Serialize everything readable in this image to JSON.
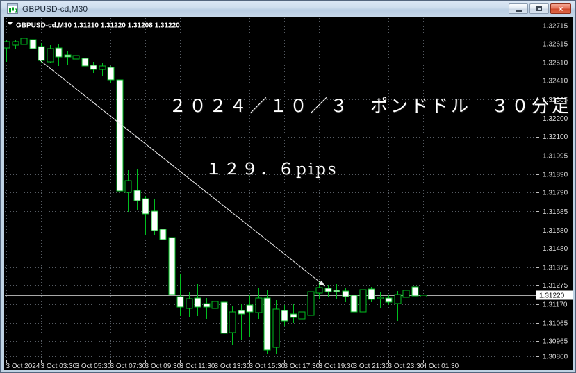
{
  "window": {
    "title": "GBPUSD-cd,M30"
  },
  "chart_header": {
    "symbol": "GBPUSD-cd,M30",
    "open": "1.31210",
    "high": "1.31220",
    "low": "1.31208",
    "close": "1.31220"
  },
  "annotations": {
    "date_label": "２０２４／１０／３　ポンドドル　３０分足",
    "pips_label": "１２９．６pips"
  },
  "axes": {
    "price_labels": [
      "1.32715",
      "1.32615",
      "1.32510",
      "1.32410",
      "1.32305",
      "1.32200",
      "1.32100",
      "1.31995",
      "1.31890",
      "1.31790",
      "1.31685",
      "1.31580",
      "1.31480",
      "1.31375",
      "1.31275",
      "1.31170",
      "1.31065",
      "1.30965",
      "1.30860"
    ],
    "time_labels": [
      {
        "index": 0,
        "label": "3 Oct 2024"
      },
      {
        "index": 4,
        "label": "3 Oct 03:30"
      },
      {
        "index": 8,
        "label": "3 Oct 05:30"
      },
      {
        "index": 12,
        "label": "3 Oct 07:30"
      },
      {
        "index": 16,
        "label": "3 Oct 09:30"
      },
      {
        "index": 20,
        "label": "3 Oct 11:30"
      },
      {
        "index": 24,
        "label": "3 Oct 13:30"
      },
      {
        "index": 28,
        "label": "3 Oct 15:30"
      },
      {
        "index": 32,
        "label": "3 Oct 17:30"
      },
      {
        "index": 36,
        "label": "3 Oct 19:30"
      },
      {
        "index": 40,
        "label": "3 Oct 21:30"
      },
      {
        "index": 44,
        "label": "3 Oct 23:30"
      },
      {
        "index": 48,
        "label": "4 Oct 01:30"
      }
    ],
    "current_price_label": "1.31220"
  },
  "colors": {
    "background": "#000000",
    "grid": "#565c63",
    "axis": "#c2c2c2",
    "axis_text": "#dcdcdc",
    "candle_stroke": "#00bf1f",
    "bull_fill": "#000000",
    "bear_fill": "#ffffff",
    "price_line": "#a8a8a8",
    "trendline": "#ededed",
    "current_price_bg": "#ffffff",
    "current_price_fg": "#000000",
    "header_text": "#ffffff"
  },
  "chart_data": {
    "type": "candlestick",
    "symbol": "GBPUSD-cd",
    "timeframe": "M30",
    "price_line": 1.3122,
    "trendline": {
      "from": {
        "index": 3.92,
        "price": 1.32522
      },
      "to": {
        "index": 36.7,
        "price": 1.3127
      }
    },
    "candles": [
      {
        "t": "3 Oct 01:30",
        "o": 1.32592,
        "h": 1.32638,
        "l": 1.32515,
        "c": 1.32626
      },
      {
        "t": "3 Oct 02:00",
        "o": 1.32607,
        "h": 1.32638,
        "l": 1.32588,
        "c": 1.32626
      },
      {
        "t": "3 Oct 02:30",
        "o": 1.32611,
        "h": 1.32657,
        "l": 1.32603,
        "c": 1.32646
      },
      {
        "t": "3 Oct 03:00",
        "o": 1.32638,
        "h": 1.3265,
        "l": 1.32561,
        "c": 1.32588
      },
      {
        "t": "3 Oct 03:30",
        "o": 1.326,
        "h": 1.32619,
        "l": 1.32511,
        "c": 1.32522
      },
      {
        "t": "3 Oct 04:00",
        "o": 1.32515,
        "h": 1.32607,
        "l": 1.32511,
        "c": 1.32588
      },
      {
        "t": "3 Oct 04:30",
        "o": 1.32592,
        "h": 1.32611,
        "l": 1.32491,
        "c": 1.32541
      },
      {
        "t": "3 Oct 05:00",
        "o": 1.32553,
        "h": 1.32573,
        "l": 1.32495,
        "c": 1.32541
      },
      {
        "t": "3 Oct 05:30",
        "o": 1.3253,
        "h": 1.32569,
        "l": 1.32491,
        "c": 1.32549
      },
      {
        "t": "3 Oct 06:00",
        "o": 1.32534,
        "h": 1.32561,
        "l": 1.32476,
        "c": 1.32491
      },
      {
        "t": "3 Oct 06:30",
        "o": 1.32495,
        "h": 1.32515,
        "l": 1.32453,
        "c": 1.32472
      },
      {
        "t": "3 Oct 07:00",
        "o": 1.32472,
        "h": 1.32511,
        "l": 1.32434,
        "c": 1.32491
      },
      {
        "t": "3 Oct 07:30",
        "o": 1.32484,
        "h": 1.32491,
        "l": 1.32399,
        "c": 1.32414
      },
      {
        "t": "3 Oct 08:00",
        "o": 1.32414,
        "h": 1.32426,
        "l": 1.31752,
        "c": 1.31798
      },
      {
        "t": "3 Oct 08:30",
        "o": 1.3179,
        "h": 1.31914,
        "l": 1.31682,
        "c": 1.31856
      },
      {
        "t": "3 Oct 09:00",
        "o": 1.31802,
        "h": 1.31917,
        "l": 1.31694,
        "c": 1.31744
      },
      {
        "t": "3 Oct 09:30",
        "o": 1.31756,
        "h": 1.31771,
        "l": 1.31551,
        "c": 1.31671
      },
      {
        "t": "3 Oct 10:00",
        "o": 1.31686,
        "h": 1.31752,
        "l": 1.31551,
        "c": 1.31578
      },
      {
        "t": "3 Oct 10:30",
        "o": 1.31586,
        "h": 1.31609,
        "l": 1.31474,
        "c": 1.31528
      },
      {
        "t": "3 Oct 11:00",
        "o": 1.3154,
        "h": 1.31547,
        "l": 1.3122,
        "c": 1.31224
      },
      {
        "t": "3 Oct 11:30",
        "o": 1.31212,
        "h": 1.31339,
        "l": 1.31104,
        "c": 1.31155
      },
      {
        "t": "3 Oct 12:00",
        "o": 1.31147,
        "h": 1.31239,
        "l": 1.31097,
        "c": 1.31201
      },
      {
        "t": "3 Oct 12:30",
        "o": 1.31205,
        "h": 1.31282,
        "l": 1.31104,
        "c": 1.31155
      },
      {
        "t": "3 Oct 13:00",
        "o": 1.31174,
        "h": 1.31205,
        "l": 1.31089,
        "c": 1.31155
      },
      {
        "t": "3 Oct 13:30",
        "o": 1.31147,
        "h": 1.31212,
        "l": 1.31085,
        "c": 1.31185
      },
      {
        "t": "3 Oct 14:00",
        "o": 1.31181,
        "h": 1.31201,
        "l": 1.30973,
        "c": 1.31008
      },
      {
        "t": "3 Oct 14:30",
        "o": 1.31012,
        "h": 1.31162,
        "l": 1.30943,
        "c": 1.31128
      },
      {
        "t": "3 Oct 15:00",
        "o": 1.31135,
        "h": 1.31174,
        "l": 1.3097,
        "c": 1.31116
      },
      {
        "t": "3 Oct 15:30",
        "o": 1.31166,
        "h": 1.31224,
        "l": 1.30989,
        "c": 1.31128
      },
      {
        "t": "3 Oct 16:00",
        "o": 1.31124,
        "h": 1.31259,
        "l": 1.31089,
        "c": 1.31205
      },
      {
        "t": "3 Oct 16:30",
        "o": 1.31205,
        "h": 1.31251,
        "l": 1.30896,
        "c": 1.30916
      },
      {
        "t": "3 Oct 17:00",
        "o": 1.30931,
        "h": 1.31193,
        "l": 1.30896,
        "c": 1.31143
      },
      {
        "t": "3 Oct 17:30",
        "o": 1.31135,
        "h": 1.31166,
        "l": 1.31047,
        "c": 1.31077
      },
      {
        "t": "3 Oct 18:00",
        "o": 1.31116,
        "h": 1.31174,
        "l": 1.31066,
        "c": 1.31097
      },
      {
        "t": "3 Oct 18:30",
        "o": 1.31089,
        "h": 1.31212,
        "l": 1.31058,
        "c": 1.31128
      },
      {
        "t": "3 Oct 19:00",
        "o": 1.31108,
        "h": 1.31259,
        "l": 1.31058,
        "c": 1.31239
      },
      {
        "t": "3 Oct 19:30",
        "o": 1.31232,
        "h": 1.31297,
        "l": 1.31201,
        "c": 1.31263
      },
      {
        "t": "3 Oct 20:00",
        "o": 1.31259,
        "h": 1.31278,
        "l": 1.31212,
        "c": 1.31239
      },
      {
        "t": "3 Oct 20:30",
        "o": 1.31247,
        "h": 1.31282,
        "l": 1.31201,
        "c": 1.31239
      },
      {
        "t": "3 Oct 21:00",
        "o": 1.31243,
        "h": 1.31259,
        "l": 1.31181,
        "c": 1.31212
      },
      {
        "t": "3 Oct 21:30",
        "o": 1.3122,
        "h": 1.31236,
        "l": 1.31124,
        "c": 1.31128
      },
      {
        "t": "3 Oct 22:00",
        "o": 1.31128,
        "h": 1.31259,
        "l": 1.31124,
        "c": 1.31251
      },
      {
        "t": "3 Oct 22:30",
        "o": 1.31255,
        "h": 1.31266,
        "l": 1.31181,
        "c": 1.31197
      },
      {
        "t": "3 Oct 23:00",
        "o": 1.31201,
        "h": 1.31239,
        "l": 1.31147,
        "c": 1.31209
      },
      {
        "t": "3 Oct 23:30",
        "o": 1.31205,
        "h": 1.3122,
        "l": 1.31166,
        "c": 1.31181
      },
      {
        "t": "4 Oct 00:00",
        "o": 1.31174,
        "h": 1.31243,
        "l": 1.31077,
        "c": 1.31224
      },
      {
        "t": "4 Oct 00:30",
        "o": 1.31208,
        "h": 1.31259,
        "l": 1.31185,
        "c": 1.31247
      },
      {
        "t": "4 Oct 01:00",
        "o": 1.31266,
        "h": 1.31282,
        "l": 1.31162,
        "c": 1.31216
      },
      {
        "t": "4 Oct 01:30",
        "o": 1.3121,
        "h": 1.3122,
        "l": 1.31208,
        "c": 1.3122
      }
    ]
  }
}
